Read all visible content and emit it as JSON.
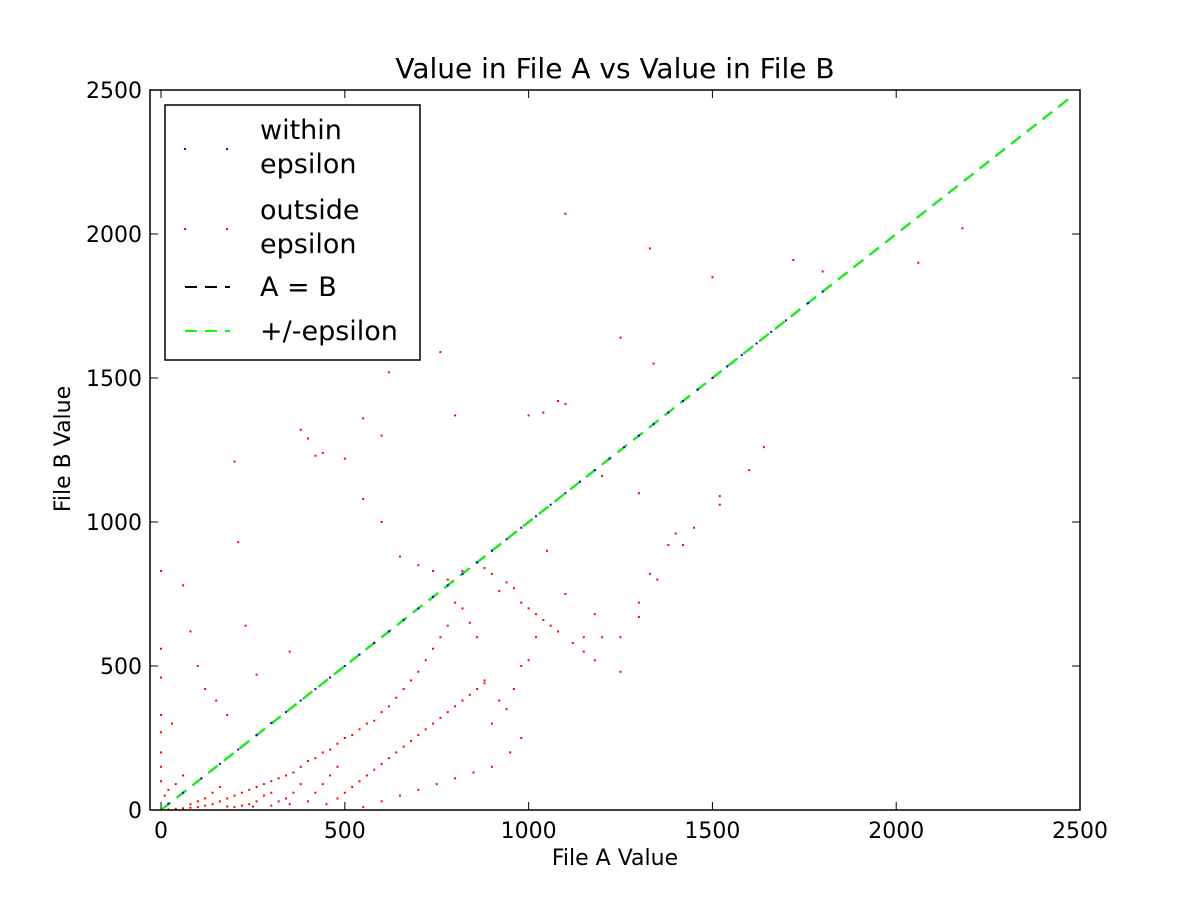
{
  "chart_data": {
    "type": "scatter",
    "title": "Value in File A vs Value in File B",
    "xlabel": "File A Value",
    "ylabel": "File B Value",
    "xlim": [
      -30,
      2500
    ],
    "ylim": [
      0,
      2500
    ],
    "xticks": [
      0,
      500,
      1000,
      1500,
      2000,
      2500
    ],
    "yticks": [
      0,
      500,
      1000,
      1500,
      2000,
      2500
    ],
    "grid": false,
    "legend_position": "top-left",
    "series": [
      {
        "name": "within\nepsilon",
        "kind": "points",
        "color": "#0000ff",
        "points": [
          [
            20,
            22
          ],
          [
            60,
            60
          ],
          [
            110,
            110
          ],
          [
            160,
            160
          ],
          [
            210,
            210
          ],
          [
            260,
            260
          ],
          [
            300,
            302
          ],
          [
            340,
            340
          ],
          [
            380,
            380
          ],
          [
            420,
            420
          ],
          [
            460,
            460
          ],
          [
            500,
            500
          ],
          [
            540,
            540
          ],
          [
            580,
            580
          ],
          [
            620,
            620
          ],
          [
            660,
            660
          ],
          [
            700,
            700
          ],
          [
            740,
            740
          ],
          [
            780,
            780
          ],
          [
            820,
            820
          ],
          [
            860,
            860
          ],
          [
            900,
            900
          ],
          [
            940,
            940
          ],
          [
            980,
            980
          ],
          [
            1020,
            1020
          ],
          [
            1060,
            1060
          ],
          [
            1100,
            1100
          ],
          [
            1140,
            1140
          ],
          [
            1180,
            1180
          ],
          [
            1220,
            1220
          ],
          [
            1260,
            1260
          ],
          [
            1300,
            1300
          ],
          [
            1340,
            1340
          ],
          [
            1380,
            1380
          ],
          [
            1420,
            1420
          ],
          [
            1460,
            1460
          ],
          [
            1500,
            1500
          ],
          [
            1540,
            1540
          ],
          [
            1580,
            1580
          ],
          [
            1620,
            1620
          ],
          [
            1660,
            1660
          ],
          [
            1700,
            1700
          ],
          [
            1760,
            1760
          ],
          [
            1800,
            1800
          ]
        ]
      },
      {
        "name": "outside\nepsilon",
        "kind": "points",
        "color": "#ff0000",
        "points": [
          [
            1100,
            2070
          ],
          [
            1330,
            1950
          ],
          [
            1500,
            1850
          ],
          [
            1720,
            1910
          ],
          [
            1800,
            1870
          ],
          [
            2060,
            1900
          ],
          [
            2180,
            2020
          ],
          [
            1250,
            1640
          ],
          [
            1340,
            1550
          ],
          [
            760,
            1590
          ],
          [
            620,
            1520
          ],
          [
            550,
            1360
          ],
          [
            600,
            1300
          ],
          [
            800,
            1370
          ],
          [
            1000,
            1370
          ],
          [
            1080,
            1420
          ],
          [
            1100,
            1410
          ],
          [
            1040,
            1380
          ],
          [
            1200,
            1160
          ],
          [
            1300,
            1100
          ],
          [
            1400,
            960
          ],
          [
            1520,
            1090
          ],
          [
            1520,
            1060
          ],
          [
            1600,
            1180
          ],
          [
            1640,
            1260
          ],
          [
            1450,
            980
          ],
          [
            1420,
            920
          ],
          [
            1380,
            920
          ],
          [
            1350,
            800
          ],
          [
            1330,
            820
          ],
          [
            1300,
            720
          ],
          [
            1300,
            670
          ],
          [
            1250,
            600
          ],
          [
            1200,
            600
          ],
          [
            1180,
            680
          ],
          [
            1150,
            600
          ],
          [
            1100,
            750
          ],
          [
            1050,
            900
          ],
          [
            1020,
            600
          ],
          [
            1000,
            520
          ],
          [
            980,
            500
          ],
          [
            960,
            420
          ],
          [
            940,
            350
          ],
          [
            920,
            380
          ],
          [
            900,
            300
          ],
          [
            880,
            450
          ],
          [
            860,
            600
          ],
          [
            840,
            650
          ],
          [
            820,
            700
          ],
          [
            800,
            720
          ],
          [
            780,
            640
          ],
          [
            760,
            600
          ],
          [
            740,
            560
          ],
          [
            720,
            520
          ],
          [
            700,
            480
          ],
          [
            680,
            450
          ],
          [
            660,
            420
          ],
          [
            640,
            390
          ],
          [
            620,
            360
          ],
          [
            600,
            340
          ],
          [
            580,
            310
          ],
          [
            560,
            300
          ],
          [
            540,
            280
          ],
          [
            520,
            260
          ],
          [
            500,
            250
          ],
          [
            480,
            230
          ],
          [
            460,
            210
          ],
          [
            440,
            200
          ],
          [
            420,
            180
          ],
          [
            400,
            170
          ],
          [
            380,
            150
          ],
          [
            360,
            130
          ],
          [
            340,
            120
          ],
          [
            320,
            110
          ],
          [
            300,
            100
          ],
          [
            280,
            90
          ],
          [
            260,
            80
          ],
          [
            240,
            70
          ],
          [
            220,
            60
          ],
          [
            200,
            50
          ],
          [
            180,
            40
          ],
          [
            160,
            30
          ],
          [
            140,
            20
          ],
          [
            120,
            15
          ],
          [
            100,
            10
          ],
          [
            80,
            8
          ],
          [
            60,
            6
          ],
          [
            40,
            4
          ],
          [
            20,
            2
          ],
          [
            0,
            830
          ],
          [
            0,
            560
          ],
          [
            0,
            460
          ],
          [
            0,
            330
          ],
          [
            0,
            270
          ],
          [
            0,
            200
          ],
          [
            0,
            150
          ],
          [
            0,
            100
          ],
          [
            30,
            300
          ],
          [
            60,
            780
          ],
          [
            80,
            620
          ],
          [
            100,
            500
          ],
          [
            120,
            420
          ],
          [
            150,
            380
          ],
          [
            180,
            330
          ],
          [
            200,
            1210
          ],
          [
            210,
            930
          ],
          [
            230,
            640
          ],
          [
            260,
            470
          ],
          [
            350,
            550
          ],
          [
            380,
            1320
          ],
          [
            400,
            1290
          ],
          [
            420,
            1230
          ],
          [
            440,
            1240
          ],
          [
            500,
            1220
          ],
          [
            550,
            1080
          ],
          [
            600,
            1000
          ],
          [
            650,
            880
          ],
          [
            700,
            850
          ],
          [
            740,
            830
          ],
          [
            780,
            800
          ],
          [
            820,
            830
          ],
          [
            860,
            860
          ],
          [
            880,
            840
          ],
          [
            900,
            820
          ],
          [
            920,
            760
          ],
          [
            940,
            790
          ],
          [
            960,
            770
          ],
          [
            980,
            720
          ],
          [
            1000,
            700
          ],
          [
            1020,
            680
          ],
          [
            1040,
            660
          ],
          [
            1060,
            640
          ],
          [
            1080,
            620
          ],
          [
            1120,
            580
          ],
          [
            1150,
            550
          ],
          [
            1180,
            520
          ],
          [
            1250,
            480
          ],
          [
            450,
            20
          ],
          [
            480,
            40
          ],
          [
            500,
            60
          ],
          [
            520,
            80
          ],
          [
            540,
            100
          ],
          [
            560,
            120
          ],
          [
            580,
            140
          ],
          [
            600,
            160
          ],
          [
            620,
            180
          ],
          [
            640,
            200
          ],
          [
            660,
            220
          ],
          [
            680,
            240
          ],
          [
            700,
            260
          ],
          [
            720,
            280
          ],
          [
            740,
            300
          ],
          [
            760,
            320
          ],
          [
            780,
            340
          ],
          [
            800,
            360
          ],
          [
            820,
            380
          ],
          [
            840,
            400
          ],
          [
            860,
            420
          ],
          [
            880,
            440
          ],
          [
            550,
            10
          ],
          [
            600,
            30
          ],
          [
            650,
            50
          ],
          [
            700,
            70
          ],
          [
            750,
            90
          ],
          [
            800,
            110
          ],
          [
            850,
            130
          ],
          [
            900,
            150
          ],
          [
            950,
            200
          ],
          [
            980,
            250
          ],
          [
            350,
            20
          ],
          [
            300,
            15
          ],
          [
            250,
            12
          ],
          [
            200,
            10
          ],
          [
            400,
            30
          ],
          [
            420,
            60
          ],
          [
            440,
            90
          ],
          [
            460,
            120
          ],
          [
            480,
            150
          ],
          [
            380,
            90
          ],
          [
            360,
            60
          ],
          [
            340,
            40
          ],
          [
            320,
            30
          ],
          [
            300,
            60
          ],
          [
            280,
            50
          ],
          [
            260,
            30
          ],
          [
            240,
            20
          ],
          [
            220,
            15
          ],
          [
            180,
            12
          ],
          [
            160,
            80
          ],
          [
            140,
            60
          ],
          [
            120,
            40
          ],
          [
            100,
            30
          ],
          [
            80,
            20
          ],
          [
            60,
            120
          ],
          [
            40,
            90
          ],
          [
            20,
            70
          ],
          [
            10,
            50
          ]
        ]
      },
      {
        "name": "A = B",
        "kind": "line",
        "color": "#000000",
        "dash": "dashed",
        "points": [
          [
            0,
            0
          ],
          [
            2480,
            2480
          ]
        ]
      },
      {
        "name": "+/-epsilon",
        "kind": "line",
        "color": "#00ff00",
        "dash": "dashed",
        "points": [
          [
            0,
            0
          ],
          [
            2480,
            2480
          ]
        ]
      }
    ]
  }
}
